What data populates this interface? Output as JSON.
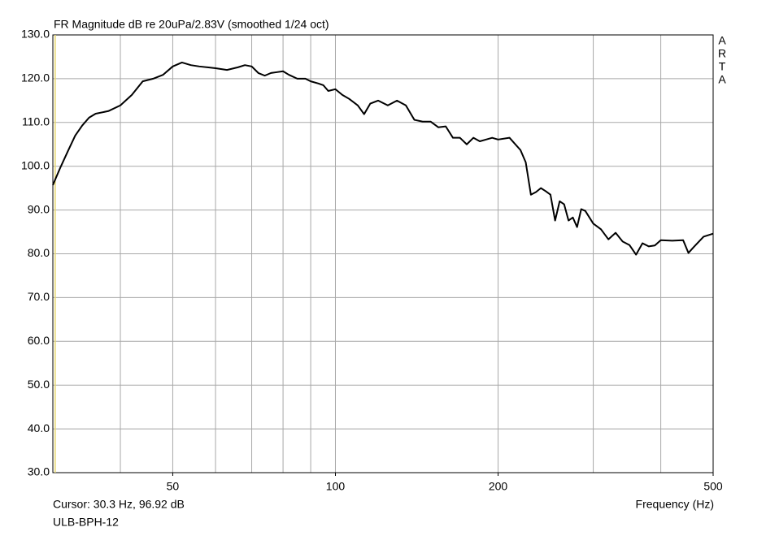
{
  "chart_data": {
    "type": "line",
    "title": "FR Magnitude dB re 20uPa/2.83V (smoothed 1/24 oct)",
    "brand": [
      "A",
      "R",
      "T",
      "A"
    ],
    "x_label": "Frequency (Hz)",
    "cursor": {
      "label": "Cursor: 30.3 Hz, 96.92 dB",
      "x": 30.3,
      "color": "#e8d870"
    },
    "device": "ULB-BPH-12",
    "log_x": true,
    "grid": true,
    "grid_color": "#a8a8a8",
    "xlim": [
      30,
      500
    ],
    "ylim": [
      30,
      130
    ],
    "xticks": [
      50,
      100,
      200,
      500
    ],
    "xgrid": [
      40,
      50,
      60,
      70,
      80,
      90,
      100,
      200,
      300,
      400
    ],
    "yticks": [
      {
        "value": 30,
        "label": "30.0"
      },
      {
        "value": 40,
        "label": "40.0"
      },
      {
        "value": 50,
        "label": "50.0"
      },
      {
        "value": 60,
        "label": "60.0"
      },
      {
        "value": 70,
        "label": "70.0"
      },
      {
        "value": 80,
        "label": "80.0"
      },
      {
        "value": 90,
        "label": "90.0"
      },
      {
        "value": 100,
        "label": "100.0"
      },
      {
        "value": 110,
        "label": "110.0"
      },
      {
        "value": 120,
        "label": "120.0"
      },
      {
        "value": 130,
        "label": "130.0"
      }
    ],
    "x": [
      30,
      31,
      32,
      33,
      34,
      35,
      36,
      38,
      40,
      42,
      44,
      46,
      48,
      50,
      52,
      54,
      56,
      58,
      60,
      63,
      66,
      68,
      70,
      72,
      74,
      76,
      78,
      80,
      82,
      85,
      88,
      90,
      93,
      95,
      97,
      100,
      103,
      106,
      110,
      113,
      116,
      120,
      125,
      130,
      135,
      140,
      145,
      150,
      155,
      160,
      165,
      170,
      175,
      180,
      185,
      190,
      195,
      200,
      210,
      220,
      225,
      230,
      235,
      240,
      245,
      250,
      255,
      260,
      265,
      270,
      275,
      280,
      285,
      290,
      300,
      310,
      320,
      330,
      340,
      350,
      360,
      370,
      380,
      390,
      400,
      420,
      440,
      450,
      460,
      480,
      500
    ],
    "series": [
      {
        "color": "#000000",
        "values": [
          95.7,
          99.8,
          103.5,
          107.0,
          109.3,
          111.1,
          112.0,
          112.6,
          113.9,
          116.3,
          119.4,
          120.0,
          120.9,
          122.8,
          123.7,
          123.1,
          122.8,
          122.6,
          122.4,
          122.0,
          122.6,
          123.1,
          122.8,
          121.3,
          120.7,
          121.3,
          121.5,
          121.7,
          120.9,
          120.0,
          120.0,
          119.4,
          118.9,
          118.5,
          117.2,
          117.6,
          116.3,
          115.4,
          113.9,
          111.9,
          114.3,
          115.0,
          113.9,
          115.0,
          113.9,
          110.6,
          110.2,
          110.2,
          108.9,
          109.1,
          106.5,
          106.5,
          105.0,
          106.5,
          105.7,
          106.1,
          106.5,
          106.1,
          106.5,
          103.7,
          100.9,
          93.5,
          94.1,
          95.0,
          94.3,
          93.5,
          87.6,
          92.0,
          91.3,
          87.6,
          88.3,
          86.1,
          90.2,
          89.8,
          86.9,
          85.6,
          83.3,
          84.8,
          82.8,
          82.0,
          79.8,
          82.4,
          81.7,
          81.9,
          83.1,
          83.0,
          83.1,
          80.2,
          81.5,
          83.9,
          84.6
        ]
      }
    ]
  }
}
